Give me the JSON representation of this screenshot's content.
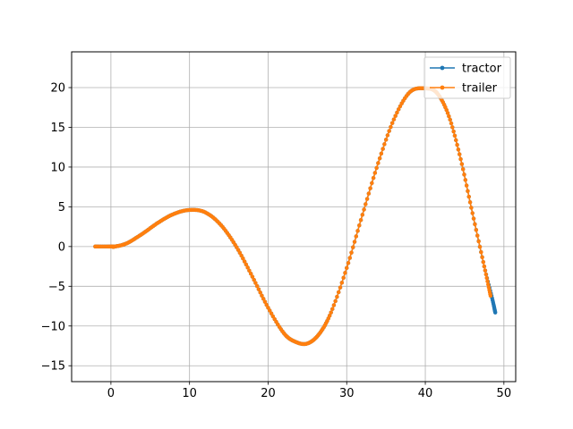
{
  "chart_data": {
    "type": "line",
    "title": "",
    "xlabel": "",
    "ylabel": "",
    "xlim": [
      -5,
      51.5
    ],
    "ylim": [
      -17,
      24.5
    ],
    "xticks": [
      0,
      10,
      20,
      30,
      40,
      50
    ],
    "yticks": [
      -15,
      -10,
      -5,
      0,
      5,
      10,
      15,
      20
    ],
    "xtick_labels": [
      "0",
      "10",
      "20",
      "30",
      "40",
      "50"
    ],
    "ytick_labels": [
      "−15",
      "−10",
      "−5",
      "0",
      "5",
      "10",
      "15",
      "20"
    ],
    "grid": true,
    "legend_position": "top-right",
    "series": [
      {
        "name": "tractor",
        "color": "#1f77b4",
        "marker": "circle",
        "x": [
          -2,
          0,
          0.5,
          2,
          4,
          6,
          8,
          10,
          12,
          14,
          16,
          18,
          20,
          22,
          23.5,
          25,
          26.5,
          28,
          30,
          32,
          34,
          36,
          38,
          40,
          41.5,
          43,
          44.5,
          46,
          47.5,
          48.5,
          48.9
        ],
        "y": [
          0,
          0,
          0,
          0.4,
          1.6,
          3.0,
          4.1,
          4.6,
          4.3,
          2.7,
          -0.1,
          -3.8,
          -7.7,
          -10.9,
          -12.0,
          -12.2,
          -11.0,
          -8.3,
          -2.7,
          4.0,
          10.5,
          16.0,
          19.4,
          19.9,
          19.3,
          16.4,
          11.0,
          4.2,
          -2.5,
          -6.5,
          -8.3
        ]
      },
      {
        "name": "trailer",
        "color": "#ff7f0e",
        "marker": "circle",
        "x": [
          -2,
          0,
          0.5,
          2,
          4,
          6,
          8,
          10,
          12,
          14,
          16,
          18,
          20,
          22,
          23.5,
          25,
          26.5,
          28,
          30,
          32,
          34,
          36,
          38,
          40,
          41.5,
          43,
          44.5,
          46,
          47.5,
          48.3
        ],
        "y": [
          0,
          0,
          0,
          0.4,
          1.6,
          3.0,
          4.1,
          4.6,
          4.3,
          2.7,
          -0.1,
          -3.8,
          -7.7,
          -10.9,
          -12.0,
          -12.2,
          -11.0,
          -8.3,
          -2.7,
          4.0,
          10.5,
          16.0,
          19.4,
          19.9,
          19.3,
          16.4,
          11.0,
          4.2,
          -2.5,
          -6.2
        ]
      }
    ]
  }
}
